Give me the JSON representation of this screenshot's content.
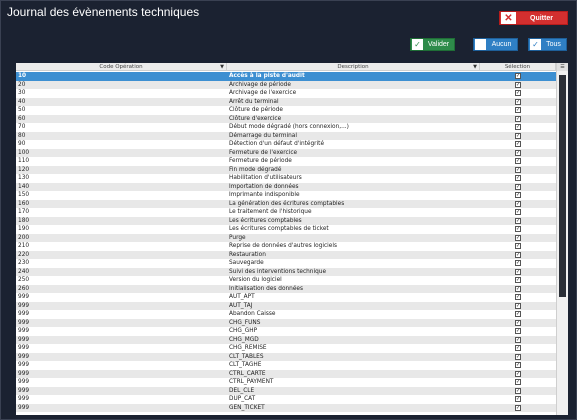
{
  "window": {
    "title": "Journal des évènements techniques"
  },
  "toolbar": {
    "quit_label": "Quitter",
    "validate_label": "Valider",
    "none_label": "Aucun",
    "all_label": "Tous"
  },
  "table": {
    "headers": {
      "code": "Code Opération",
      "description": "Description",
      "selection": "Sélection"
    },
    "rows": [
      {
        "code": "10",
        "description": "Accès à la piste d'audit",
        "checked": true,
        "selected": true
      },
      {
        "code": "20",
        "description": "Archivage de période",
        "checked": true
      },
      {
        "code": "30",
        "description": "Archivage de l'exercice",
        "checked": true
      },
      {
        "code": "40",
        "description": "Arrêt du terminal",
        "checked": true
      },
      {
        "code": "50",
        "description": "Clôture de période",
        "checked": true
      },
      {
        "code": "60",
        "description": "Clôture d'exercice",
        "checked": true
      },
      {
        "code": "70",
        "description": "Début mode dégradé (hors connexion,...)",
        "checked": true
      },
      {
        "code": "80",
        "description": "Démarrage du terminal",
        "checked": true
      },
      {
        "code": "90",
        "description": "Détection d'un défaut d'intégrité",
        "checked": true
      },
      {
        "code": "100",
        "description": "Fermeture de l'exercice",
        "checked": true
      },
      {
        "code": "110",
        "description": "Fermeture de période",
        "checked": true
      },
      {
        "code": "120",
        "description": "Fin mode dégradé",
        "checked": true
      },
      {
        "code": "130",
        "description": "Habilitation d'utilisateurs",
        "checked": true
      },
      {
        "code": "140",
        "description": "Importation de données",
        "checked": true
      },
      {
        "code": "150",
        "description": "Imprimante indisponible",
        "checked": true
      },
      {
        "code": "160",
        "description": "La génération des écritures comptables",
        "checked": true
      },
      {
        "code": "170",
        "description": "Le traitement de l'historique",
        "checked": true
      },
      {
        "code": "180",
        "description": "Les écritures comptables",
        "checked": true
      },
      {
        "code": "190",
        "description": "Les écritures comptables de ticket",
        "checked": true
      },
      {
        "code": "200",
        "description": "Purge",
        "checked": true
      },
      {
        "code": "210",
        "description": "Reprise de données d'autres logiciels",
        "checked": true
      },
      {
        "code": "220",
        "description": "Restauration",
        "checked": true
      },
      {
        "code": "230",
        "description": "Sauvegarde",
        "checked": true
      },
      {
        "code": "240",
        "description": "Suivi des interventions technique",
        "checked": true
      },
      {
        "code": "250",
        "description": "Version du logiciel",
        "checked": true
      },
      {
        "code": "260",
        "description": "Initialisation des données",
        "checked": true
      },
      {
        "code": "999",
        "description": "AUT_APT",
        "checked": true
      },
      {
        "code": "999",
        "description": "AUT_TAJ",
        "checked": true
      },
      {
        "code": "999",
        "description": "Abandon Caisse",
        "checked": true
      },
      {
        "code": "999",
        "description": "CHG_FUNS",
        "checked": true
      },
      {
        "code": "999",
        "description": "CHG_GHP",
        "checked": true
      },
      {
        "code": "999",
        "description": "CHG_MGD",
        "checked": true
      },
      {
        "code": "999",
        "description": "CHG_REMISE",
        "checked": true
      },
      {
        "code": "999",
        "description": "CLT_TABLES",
        "checked": true
      },
      {
        "code": "999",
        "description": "CLT_TAGHE",
        "checked": true
      },
      {
        "code": "999",
        "description": "CTRL_CARTE",
        "checked": true
      },
      {
        "code": "999",
        "description": "CTRL_PAYMENT",
        "checked": true
      },
      {
        "code": "999",
        "description": "DEL_CLE",
        "checked": true
      },
      {
        "code": "999",
        "description": "DUP_CAT",
        "checked": true
      },
      {
        "code": "999",
        "description": "GEN_TICKET",
        "checked": true
      }
    ]
  },
  "colors": {
    "background": "#1b2231",
    "quit": "#d32f2f",
    "validate": "#2e8b4a",
    "select_buttons": "#2f7fc4",
    "selected_row": "#3d8fd1"
  }
}
